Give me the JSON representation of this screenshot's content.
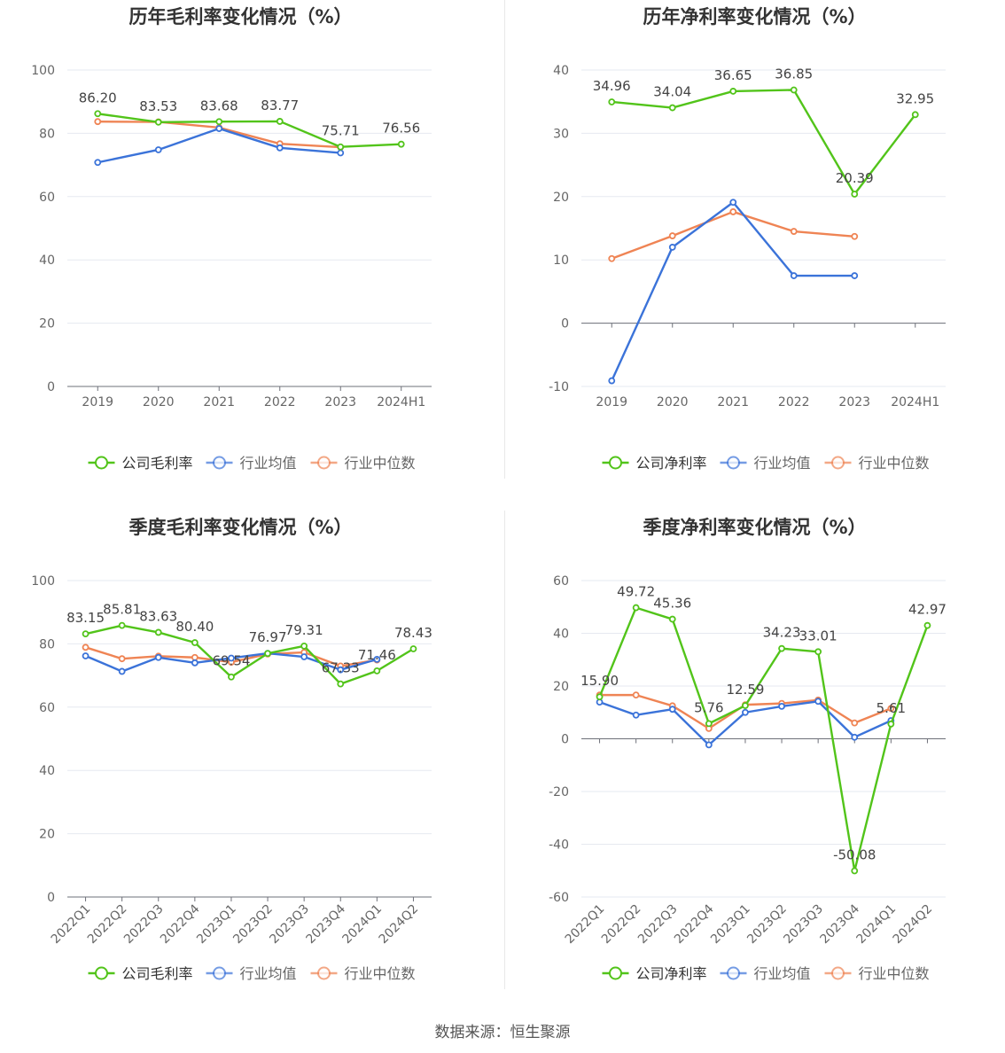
{
  "source": "数据来源：恒生聚源",
  "legend_symbol_colors": {
    "company": "#52c41a",
    "avg": "#3b73d9",
    "median": "#ef8454"
  },
  "chart_data": [
    {
      "type": "line",
      "title": "历年毛利率变化情况（%）",
      "categories": [
        "2019",
        "2020",
        "2021",
        "2022",
        "2023",
        "2024H1"
      ],
      "ylim": [
        0,
        100
      ],
      "yticks": [
        0,
        20,
        40,
        60,
        80,
        100
      ],
      "rotate_labels": false,
      "grid": true,
      "legend_position": "bottom",
      "series": [
        {
          "name": "公司毛利率",
          "color": "#52c41a",
          "values": [
            86.2,
            83.53,
            83.68,
            83.77,
            75.71,
            76.56
          ],
          "labels": [
            "86.20",
            "83.53",
            "83.68",
            "83.77",
            "75.71",
            "76.56"
          ]
        },
        {
          "name": "行业均值",
          "color": "#3b73d9",
          "values": [
            70.8,
            74.8,
            81.5,
            75.4,
            73.8,
            null
          ]
        },
        {
          "name": "行业中位数",
          "color": "#ef8454",
          "values": [
            83.7,
            83.6,
            81.8,
            76.7,
            75.6,
            null
          ]
        }
      ]
    },
    {
      "type": "line",
      "title": "历年净利率变化情况（%）",
      "categories": [
        "2019",
        "2020",
        "2021",
        "2022",
        "2023",
        "2024H1"
      ],
      "ylim": [
        -10,
        40
      ],
      "yticks": [
        -10,
        0,
        10,
        20,
        30,
        40
      ],
      "rotate_labels": false,
      "grid": true,
      "legend_position": "bottom",
      "series": [
        {
          "name": "公司净利率",
          "color": "#52c41a",
          "values": [
            34.96,
            34.04,
            36.65,
            36.85,
            20.39,
            32.95
          ],
          "labels": [
            "34.96",
            "34.04",
            "36.65",
            "36.85",
            "20.39",
            "32.95"
          ]
        },
        {
          "name": "行业均值",
          "color": "#3b73d9",
          "values": [
            -9.1,
            12.0,
            19.1,
            7.5,
            7.5,
            null
          ]
        },
        {
          "name": "行业中位数",
          "color": "#ef8454",
          "values": [
            10.2,
            13.8,
            17.6,
            14.5,
            13.7,
            null
          ]
        }
      ]
    },
    {
      "type": "line",
      "title": "季度毛利率变化情况（%）",
      "categories": [
        "2022Q1",
        "2022Q2",
        "2022Q3",
        "2022Q4",
        "2023Q1",
        "2023Q2",
        "2023Q3",
        "2023Q4",
        "2024Q1",
        "2024Q2"
      ],
      "ylim": [
        0,
        100
      ],
      "yticks": [
        0,
        20,
        40,
        60,
        80,
        100
      ],
      "rotate_labels": true,
      "grid": true,
      "legend_position": "bottom",
      "series": [
        {
          "name": "公司毛利率",
          "color": "#52c41a",
          "values": [
            83.15,
            85.81,
            83.63,
            80.4,
            69.54,
            76.97,
            79.31,
            67.33,
            71.46,
            78.43
          ],
          "labels": [
            "83.15",
            "85.81",
            "83.63",
            "80.40",
            "69.54",
            "76.97",
            "79.31",
            "67.33",
            "71.46",
            "78.43"
          ]
        },
        {
          "name": "行业均值",
          "color": "#3b73d9",
          "values": [
            76.2,
            71.3,
            75.7,
            74.0,
            75.5,
            77.0,
            75.9,
            71.8,
            75.1,
            null
          ]
        },
        {
          "name": "行业中位数",
          "color": "#ef8454",
          "values": [
            78.9,
            75.3,
            76.1,
            75.7,
            74.2,
            76.8,
            77.3,
            73.0,
            74.9,
            null
          ]
        }
      ]
    },
    {
      "type": "line",
      "title": "季度净利率变化情况（%）",
      "categories": [
        "2022Q1",
        "2022Q2",
        "2022Q3",
        "2022Q4",
        "2023Q1",
        "2023Q2",
        "2023Q3",
        "2023Q4",
        "2024Q1",
        "2024Q2"
      ],
      "ylim": [
        -60,
        60
      ],
      "yticks": [
        -60,
        -40,
        -20,
        0,
        20,
        40,
        60
      ],
      "rotate_labels": true,
      "grid": true,
      "legend_position": "bottom",
      "series": [
        {
          "name": "公司净利率",
          "color": "#52c41a",
          "values": [
            15.9,
            49.72,
            45.36,
            5.76,
            12.59,
            34.23,
            33.01,
            -50.08,
            5.61,
            42.97
          ],
          "labels": [
            "15.90",
            "49.72",
            "45.36",
            "5.76",
            "12.59",
            "34.23",
            "33.01",
            "-50.08",
            "5.61",
            "42.97"
          ]
        },
        {
          "name": "行业均值",
          "color": "#3b73d9",
          "values": [
            13.9,
            9.0,
            11.2,
            -2.3,
            10.0,
            12.3,
            14.2,
            0.6,
            6.9,
            null
          ]
        },
        {
          "name": "行业中位数",
          "color": "#ef8454",
          "values": [
            16.6,
            16.6,
            12.5,
            3.9,
            12.9,
            13.4,
            14.7,
            6.0,
            11.5,
            null
          ]
        }
      ]
    }
  ]
}
